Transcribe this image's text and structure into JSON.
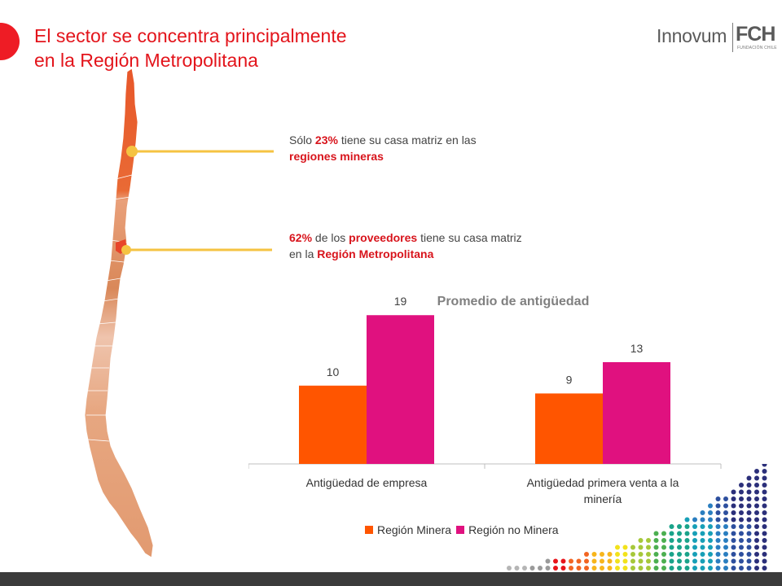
{
  "header": {
    "title_line1": "El sector se concentra principalmente",
    "title_line2": "en la Región Metropolitana",
    "logo_left": "Innovum",
    "logo_right": "FCH",
    "logo_subtitle": "FUNDACIÓN CHILE"
  },
  "notes": {
    "mining_pre": "Sólo ",
    "mining_pct": "23%",
    "mining_mid": " tiene su casa matriz en las",
    "mining_strong": "regiones mineras",
    "metro_pct": "62%",
    "metro_mid1": " de los ",
    "metro_strong1": "proveedores",
    "metro_mid2": " tiene su casa matriz",
    "metro_line2_pre": "en la ",
    "metro_strong2": "Región Metropolitana"
  },
  "colors": {
    "title": "#e3141b",
    "series_minera": "#ff5500",
    "series_no_minera": "#e0117f",
    "connector": "#f5c342"
  },
  "chart_data": {
    "type": "bar",
    "title": "Promedio de antigüedad",
    "categories": [
      [
        "Antigüedad de empresa"
      ],
      [
        "Antigüedad primera venta a la",
        "minería"
      ]
    ],
    "series": [
      {
        "name": "Región Minera",
        "values": [
          10,
          9
        ],
        "color": "#ff5500"
      },
      {
        "name": "Región no Minera",
        "values": [
          19,
          13
        ],
        "color": "#e0117f"
      }
    ],
    "ylim": [
      0,
      21
    ],
    "grid": false,
    "legend": "bottom"
  }
}
